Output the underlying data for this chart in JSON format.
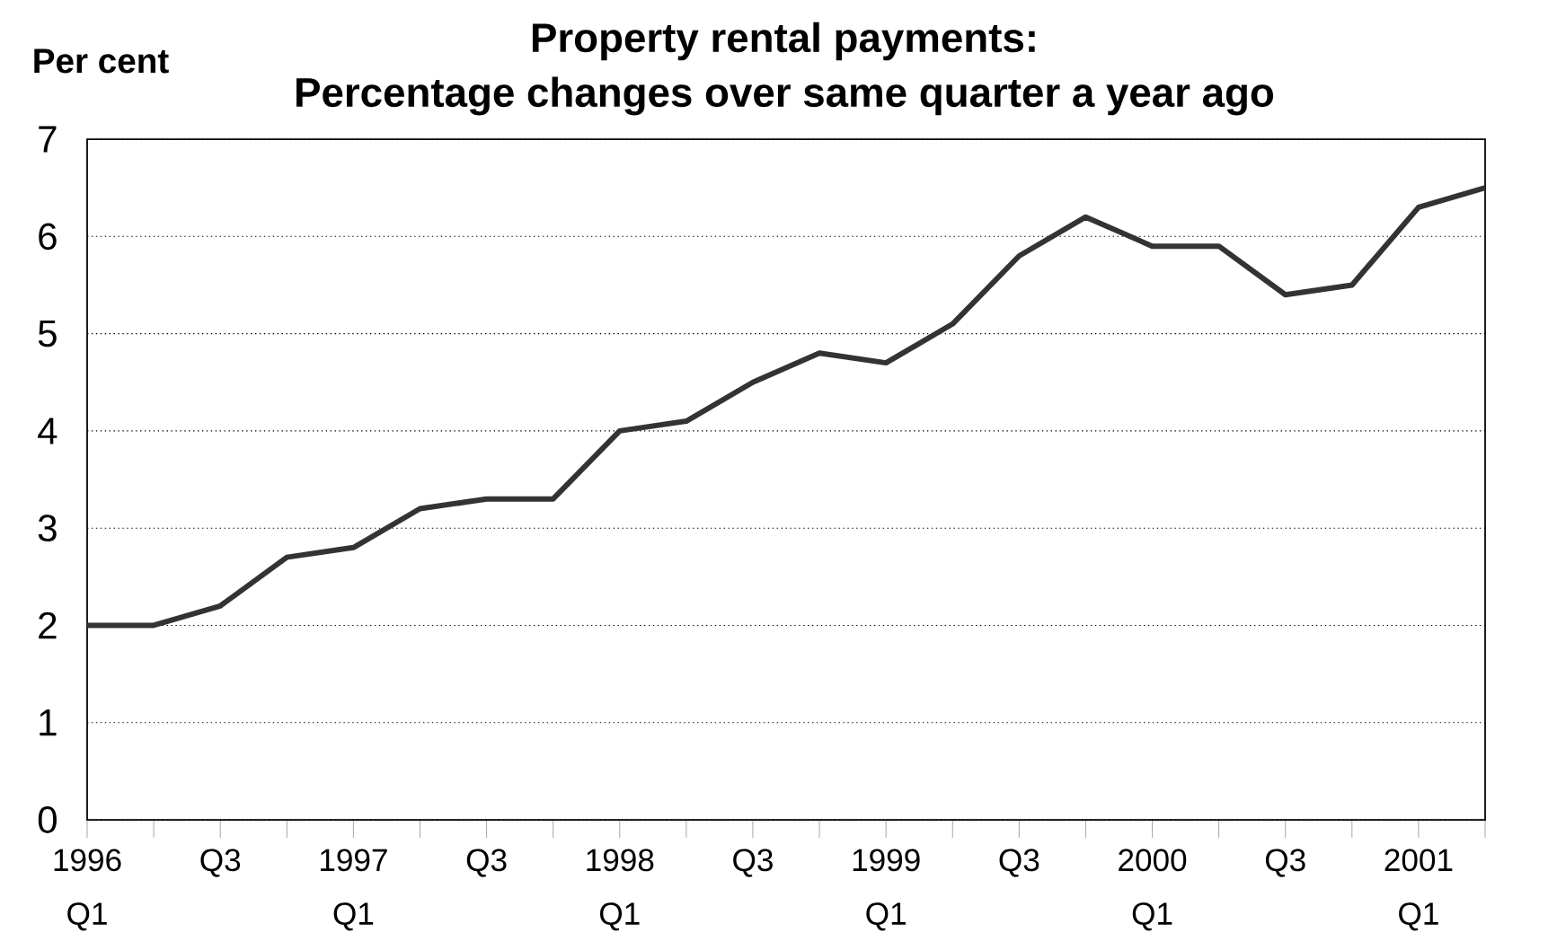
{
  "chart_data": {
    "type": "line",
    "title": "Property rental payments:",
    "subtitle": "Percentage changes over same quarter a year ago",
    "ylabel": "Per cent",
    "categories": [
      "1996 Q1",
      null,
      "Q3",
      null,
      "1997 Q1",
      null,
      "Q3",
      null,
      "1998 Q1",
      null,
      "Q3",
      null,
      "1999 Q1",
      null,
      "Q3",
      null,
      "2000 Q1",
      null,
      "Q3",
      null,
      "2001 Q1",
      null
    ],
    "values": [
      2.0,
      2.0,
      2.2,
      2.7,
      2.8,
      3.2,
      3.3,
      3.3,
      4.0,
      4.1,
      4.5,
      4.8,
      4.7,
      5.1,
      5.8,
      6.2,
      5.9,
      5.9,
      5.4,
      5.5,
      6.3,
      6.5
    ],
    "color": "#333333",
    "ylim": [
      0,
      7
    ],
    "yticks": [
      0,
      1,
      2,
      3,
      4,
      5,
      6,
      7
    ],
    "grid": "y",
    "marker": "none",
    "line_style": "solid"
  }
}
